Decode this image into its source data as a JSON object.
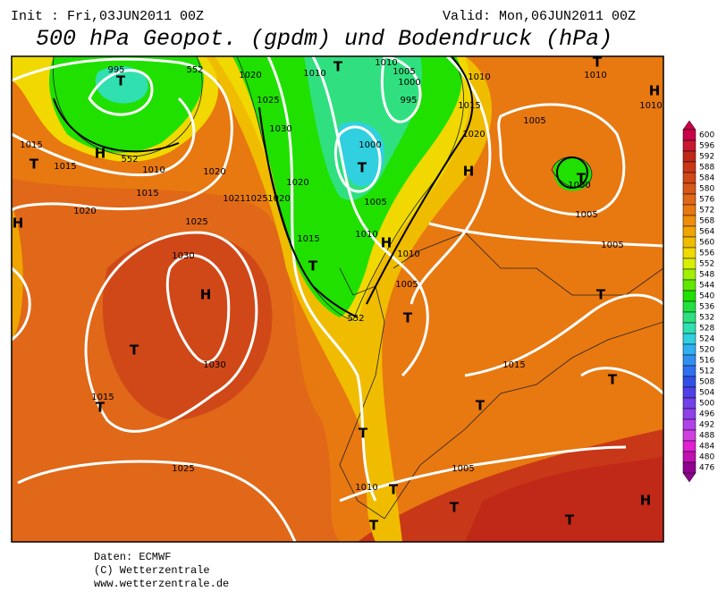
{
  "header": {
    "init": "Init : Fri,03JUN2011  00Z",
    "valid": "Valid: Mon,06JUN2011  00Z",
    "title": "500 hPa Geopot. (gpdm) und Bodendruck (hPa)"
  },
  "map": {
    "labels": [
      "995",
      "T",
      "H",
      "1015",
      "T",
      "1015",
      "1010",
      "1015",
      "1020",
      "H",
      "1020",
      "1025",
      "1030",
      "1020",
      "1021",
      "1025",
      "1020",
      "1025",
      "1030",
      "H",
      "T",
      "1030",
      "1015",
      "T",
      "1025",
      "1010",
      "T",
      "1020",
      "1015",
      "T",
      "1010",
      "1005",
      "1000",
      "995",
      "1000",
      "T",
      "1005",
      "1010",
      "H",
      "1010",
      "1005",
      "T",
      "1010",
      "1015",
      "1020",
      "H",
      "1005",
      "T",
      "1000",
      "1005",
      "1010",
      "1005",
      "T",
      "H",
      "1010",
      "T",
      "T",
      "1015",
      "1010",
      "T",
      "T",
      "1010",
      "T",
      "1005",
      "T",
      "T",
      "T",
      "H",
      "552",
      "552",
      "552"
    ]
  },
  "legend": {
    "entries": [
      {
        "label": "600",
        "color": "#c8004a"
      },
      {
        "label": "596",
        "color": "#c81830"
      },
      {
        "label": "592",
        "color": "#c02818"
      },
      {
        "label": "588",
        "color": "#c83818"
      },
      {
        "label": "584",
        "color": "#d04818"
      },
      {
        "label": "580",
        "color": "#d85818"
      },
      {
        "label": "576",
        "color": "#e06818"
      },
      {
        "label": "572",
        "color": "#e87810"
      },
      {
        "label": "568",
        "color": "#f08c08"
      },
      {
        "label": "564",
        "color": "#f0a400"
      },
      {
        "label": "560",
        "color": "#f0bc00"
      },
      {
        "label": "556",
        "color": "#f0d800"
      },
      {
        "label": "552",
        "color": "#d8f000"
      },
      {
        "label": "548",
        "color": "#a0f000"
      },
      {
        "label": "544",
        "color": "#60e800"
      },
      {
        "label": "540",
        "color": "#20e000"
      },
      {
        "label": "536",
        "color": "#20e040"
      },
      {
        "label": "532",
        "color": "#30e080"
      },
      {
        "label": "528",
        "color": "#30e0b0"
      },
      {
        "label": "524",
        "color": "#30d0e0"
      },
      {
        "label": "520",
        "color": "#30b0f0"
      },
      {
        "label": "516",
        "color": "#3090f0"
      },
      {
        "label": "512",
        "color": "#3070f0"
      },
      {
        "label": "508",
        "color": "#3050e8"
      },
      {
        "label": "504",
        "color": "#5040e8"
      },
      {
        "label": "500",
        "color": "#7040e8"
      },
      {
        "label": "496",
        "color": "#9040e8"
      },
      {
        "label": "492",
        "color": "#b040e8"
      },
      {
        "label": "488",
        "color": "#d040e0"
      },
      {
        "label": "484",
        "color": "#e020d0"
      },
      {
        "label": "480",
        "color": "#c010b0"
      },
      {
        "label": "476",
        "color": "#900090"
      }
    ]
  },
  "footer": {
    "lines": [
      "Daten: ECMWF",
      "(C) Wetterzentrale",
      "www.wetterzentrale.de"
    ]
  }
}
